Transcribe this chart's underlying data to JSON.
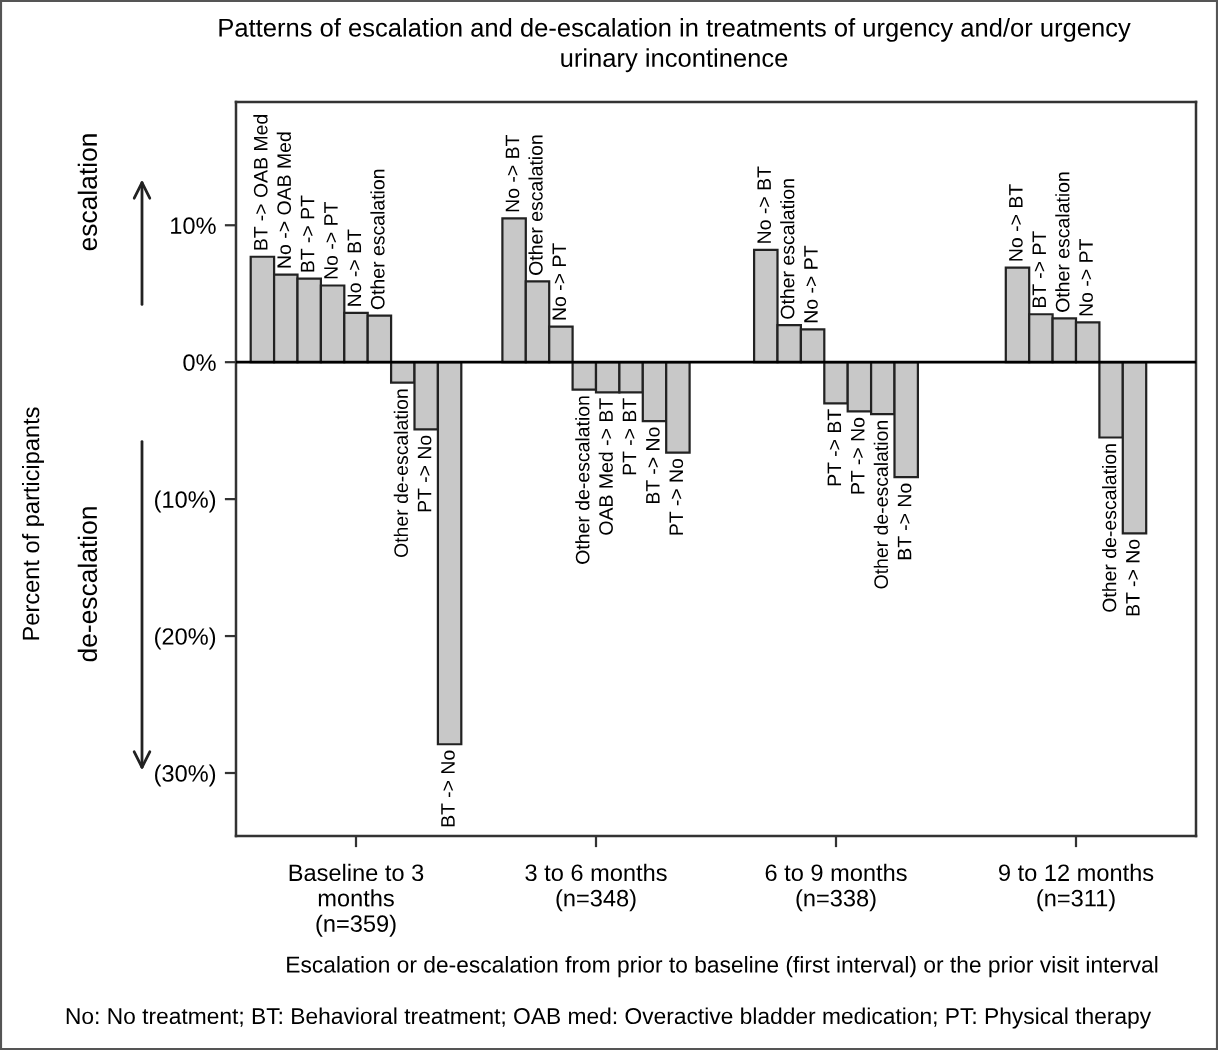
{
  "chart_data": {
    "type": "bar",
    "title": "Patterns of escalation and de-escalation in treatments of urgency and/or urgency\nurinary incontinence",
    "xlabel": "Escalation or de-escalation from prior to baseline (first interval) or the prior visit interval",
    "ylabel": "Percent of participants",
    "categories": [
      "Baseline to 3\nmonths\n(n=359)",
      "3 to 6 months\n(n=348)",
      "6 to 9 months\n(n=338)",
      "9 to 12 months\n(n=311)"
    ],
    "series": [
      {
        "color": "#c8c8c8",
        "values": [
          7.7,
          10.5,
          8.2,
          6.9
        ]
      },
      {
        "color": "#c8c8c8",
        "values": [
          6.4,
          5.9,
          2.7,
          3.5
        ]
      },
      {
        "color": "#c8c8c8",
        "values": [
          6.1,
          2.6,
          2.4,
          3.2
        ]
      },
      {
        "color": "#c8c8c8",
        "values": [
          5.6,
          -2.0,
          -3.0,
          2.9
        ]
      },
      {
        "color": "#c8c8c8",
        "values": [
          3.6,
          -2.2,
          -3.6,
          -5.5
        ]
      },
      {
        "color": "#c8c8c8",
        "values": [
          3.4,
          -2.2,
          -3.8,
          -12.5
        ]
      },
      {
        "color": "#c8c8c8",
        "values": [
          -1.5,
          -4.3,
          -8.4,
          null
        ]
      },
      {
        "color": "#c8c8c8",
        "values": [
          -4.9,
          -6.6,
          null,
          null
        ]
      },
      {
        "color": "#c8c8c8",
        "values": [
          -27.9,
          null,
          null,
          null
        ]
      }
    ],
    "ylim": [
      -34.6,
      19
    ],
    "yticks": [
      {
        "value": 10,
        "label": "10%"
      },
      {
        "value": 0,
        "label": "0%"
      },
      {
        "value": -10,
        "label": "(10%)"
      },
      {
        "value": -20,
        "label": "(20%)"
      },
      {
        "value": -30,
        "label": "(30%)"
      }
    ],
    "ref_lines": [
      {
        "axis": "y",
        "value": 0,
        "color": "#000000"
      }
    ],
    "grid": false,
    "annotations": [
      "escalation",
      "de-escalation",
      "No: No treatment; BT: Behavioral treatment; OAB med: Overactive bladder medication; PT: Physical therapy",
      "BT -> OAB Med",
      "No -> OAB Med",
      "BT -> PT",
      "No -> PT",
      "No -> BT",
      "Other escalation",
      "Other de-escalation",
      "PT -> No",
      "BT -> No",
      "No -> BT",
      "Other escalation",
      "No -> PT",
      "Other de-escalation",
      "OAB Med -> BT",
      "PT -> BT",
      "BT -> No",
      "PT -> No",
      "No -> BT",
      "Other escalation",
      "No -> PT",
      "PT -> BT",
      "PT -> No",
      "Other de-escalation",
      "BT -> No",
      "No -> BT",
      "BT -> PT",
      "Other escalation",
      "No -> PT",
      "Other de-escalation",
      "BT -> No"
    ]
  }
}
